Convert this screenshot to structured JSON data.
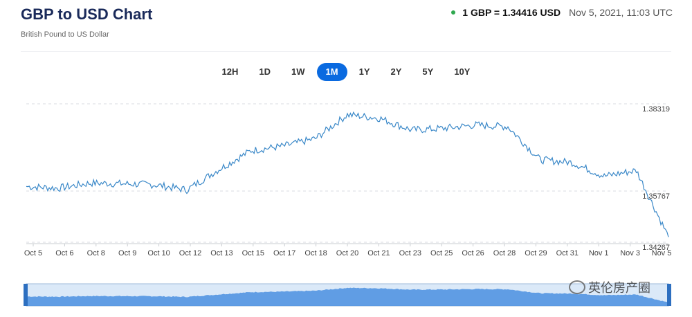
{
  "header": {
    "title": "GBP to USD Chart",
    "subtitle": "British Pound to US Dollar",
    "rate_label": "1 GBP = 1.34416 USD",
    "timestamp": "Nov 5, 2021, 11:03 UTC",
    "status_color": "#2fa84f"
  },
  "ranges": {
    "items": [
      "12H",
      "1D",
      "1W",
      "1M",
      "1Y",
      "2Y",
      "5Y",
      "10Y"
    ],
    "active": "1M",
    "active_color": "#0a6ae0"
  },
  "watermark": "英伦房产圈",
  "chart_data": {
    "type": "line",
    "title": "GBP to USD Chart",
    "series": [
      {
        "name": "",
        "x": [
          "Oct 5",
          "Oct 6",
          "Oct 8",
          "Oct 9",
          "Oct 10",
          "Oct 12",
          "Oct 13",
          "Oct 15",
          "Oct 17",
          "Oct 18",
          "Oct 20",
          "Oct 21",
          "Oct 23",
          "Oct 25",
          "Oct 26",
          "Oct 28",
          "Oct 29",
          "Oct 31",
          "Nov 1",
          "Nov 3",
          "Nov 5"
        ],
        "values": [
          1.359,
          1.3585,
          1.36,
          1.3598,
          1.3595,
          1.358,
          1.364,
          1.3695,
          1.3708,
          1.373,
          1.38,
          1.379,
          1.3755,
          1.376,
          1.377,
          1.3765,
          1.3668,
          1.366,
          1.362,
          1.3637,
          1.3442
        ]
      }
    ],
    "x_tick_labels": [
      "Oct 5",
      "Oct 6",
      "Oct 8",
      "Oct 9",
      "Oct 10",
      "Oct 12",
      "Oct 13",
      "Oct 15",
      "Oct 17",
      "Oct 18",
      "Oct 20",
      "Oct 21",
      "Oct 23",
      "Oct 25",
      "Oct 26",
      "Oct 28",
      "Oct 29",
      "Oct 31",
      "Nov 1",
      "Nov 3",
      "Nov 5"
    ],
    "y_tick_labels": [
      "1.38319",
      "1.35767",
      "1.34267"
    ],
    "y_ticks": [
      1.38319,
      1.35767,
      1.34267
    ],
    "ylim": [
      1.34267,
      1.38319
    ],
    "grid": true,
    "line_color": "#3a88c8",
    "navigator_color": "#4a8fe0"
  }
}
